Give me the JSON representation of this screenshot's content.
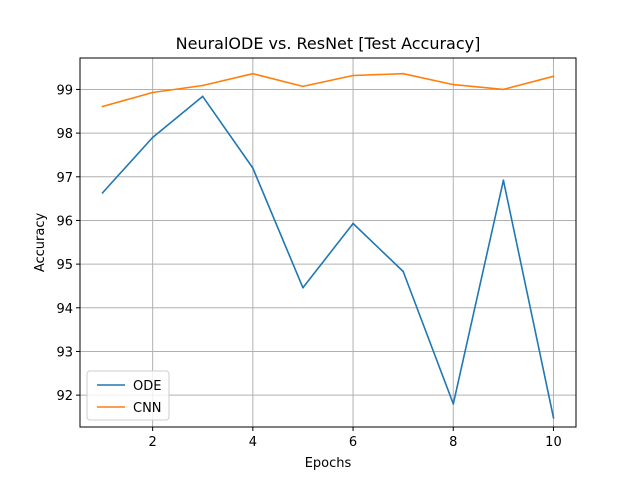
{
  "chart_data": {
    "type": "line",
    "title": "NeuralODE vs. ResNet [Test Accuracy]",
    "xlabel": "Epochs",
    "ylabel": "Accuracy",
    "x": [
      1,
      2,
      3,
      4,
      5,
      6,
      7,
      8,
      9,
      10
    ],
    "xticks": [
      2,
      4,
      6,
      8,
      10
    ],
    "yticks": [
      92,
      93,
      94,
      95,
      96,
      97,
      98,
      99
    ],
    "xlim": [
      0.55,
      10.45
    ],
    "ylim": [
      91.27,
      99.72
    ],
    "grid": true,
    "legend_position": "lower-left",
    "series": [
      {
        "name": "ODE",
        "color": "#1f77b4",
        "values": [
          96.63,
          97.9,
          98.84,
          97.2,
          94.46,
          95.93,
          94.83,
          91.8,
          96.92,
          91.48
        ]
      },
      {
        "name": "CNN",
        "color": "#ff7f0e",
        "values": [
          98.61,
          98.93,
          99.09,
          99.36,
          99.07,
          99.32,
          99.36,
          99.11,
          99.0,
          99.3
        ]
      }
    ]
  }
}
